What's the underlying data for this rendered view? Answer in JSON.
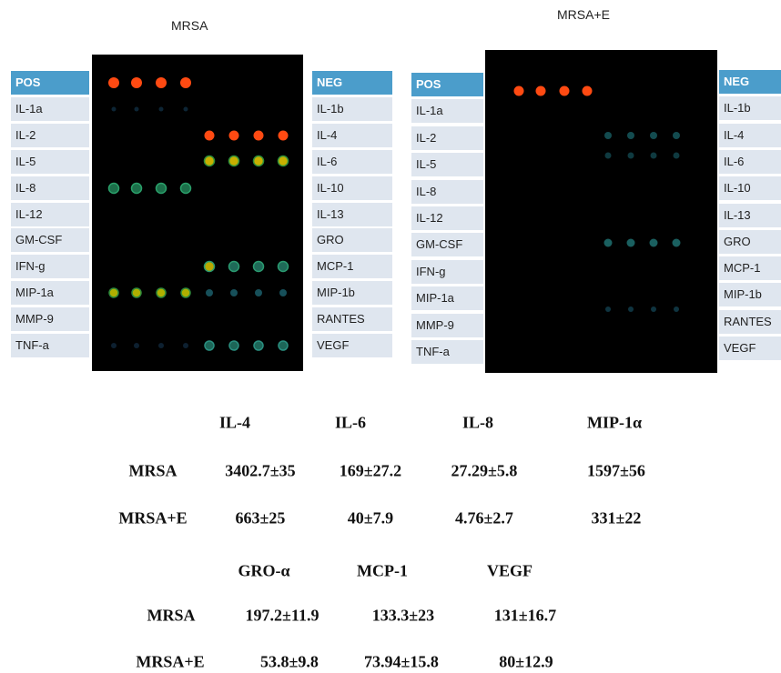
{
  "panels": [
    {
      "title": "MRSA",
      "left_labels": [
        "POS",
        "IL-1a",
        "IL-2",
        "IL-5",
        "IL-8",
        "IL-12",
        "GM-CSF",
        "IFN-g",
        "MIP-1a",
        "MMP-9",
        "TNF-a"
      ],
      "right_labels": [
        "NEG",
        "IL-1b",
        "IL-4",
        "IL-6",
        "IL-10",
        "IL-13",
        "GRO",
        "MCP-1",
        "MIP-1b",
        "RANTES",
        "VEGF"
      ]
    },
    {
      "title": "MRSA+E",
      "left_labels": [
        "POS",
        "IL-1a",
        "IL-2",
        "IL-5",
        "IL-8",
        "IL-12",
        "GM-CSF",
        "IFN-g",
        "MIP-1a",
        "MMP-9",
        "TNF-a"
      ],
      "right_labels": [
        "NEG",
        "IL-1b",
        "IL-4",
        "IL-6",
        "IL-10",
        "IL-13",
        "GRO",
        "MCP-1",
        "MIP-1b",
        "RANTES",
        "VEGF"
      ]
    }
  ],
  "tables": [
    {
      "headers": [
        "IL-4",
        "IL-6",
        "IL-8",
        "MIP-1α"
      ],
      "rows": [
        {
          "label": "MRSA",
          "values": [
            "3402.7±35",
            "169±27.2",
            "27.29±5.8",
            "1597±56"
          ]
        },
        {
          "label": "MRSA+E",
          "values": [
            "663±25",
            "40±7.9",
            "4.76±2.7",
            "331±22"
          ]
        }
      ]
    },
    {
      "headers": [
        "GRO-α",
        "MCP-1",
        "VEGF"
      ],
      "rows": [
        {
          "label": "MRSA",
          "values": [
            "197.2±11.9",
            "133.3±23",
            "131±16.7"
          ]
        },
        {
          "label": "MRSA+E",
          "values": [
            "53.8±9.8",
            "73.94±15.8",
            "80±12.9"
          ]
        }
      ]
    }
  ]
}
